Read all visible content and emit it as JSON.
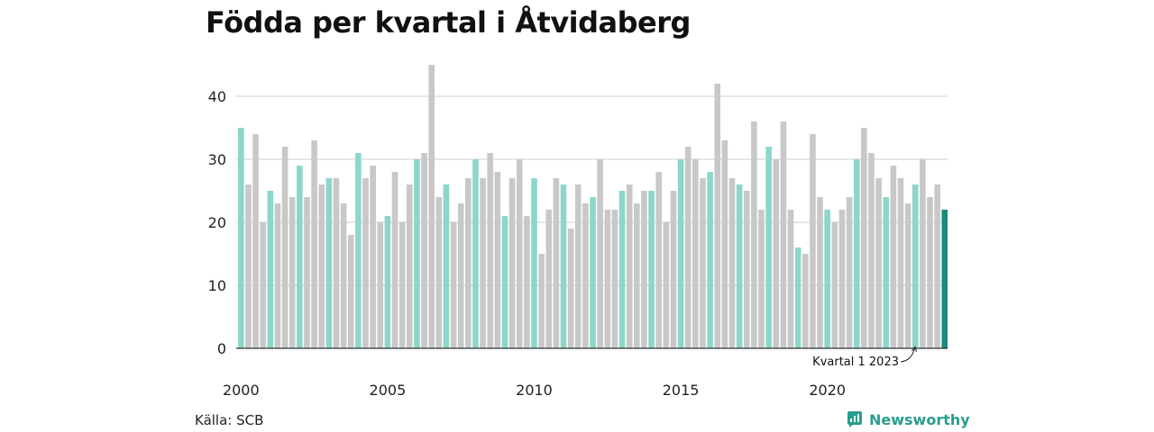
{
  "title": "Födda per kvartal i Åtvidaberg",
  "source": "Källa: SCB",
  "brand": "Newsworthy",
  "annotation": "Kvartal 1 2023",
  "colors": {
    "q1": "#8dd6cc",
    "other": "#c8c8c8",
    "latest": "#1a8a7e",
    "grid": "#dddddd",
    "brand": "#2a9d8f"
  },
  "chart_data": {
    "type": "bar",
    "title": "Födda per kvartal i Åtvidaberg",
    "xlabel": "",
    "ylabel": "",
    "ylim": [
      0,
      45
    ],
    "yticks": [
      0,
      10,
      20,
      30,
      40
    ],
    "xtick_labels": [
      "2000",
      "2005",
      "2010",
      "2015",
      "2020"
    ],
    "grid": true,
    "highlight": "Kvartal 1 2023",
    "start": "2000 Q1",
    "values": [
      35,
      26,
      34,
      20,
      25,
      23,
      32,
      24,
      29,
      24,
      33,
      26,
      27,
      27,
      23,
      18,
      31,
      27,
      29,
      20,
      21,
      28,
      20,
      26,
      30,
      31,
      45,
      24,
      26,
      20,
      23,
      27,
      30,
      27,
      31,
      28,
      21,
      27,
      30,
      21,
      27,
      15,
      22,
      27,
      26,
      19,
      26,
      23,
      24,
      30,
      22,
      22,
      25,
      26,
      23,
      25,
      25,
      28,
      20,
      25,
      30,
      32,
      30,
      27,
      28,
      42,
      33,
      27,
      26,
      25,
      36,
      22,
      32,
      30,
      36,
      22,
      16,
      15,
      34,
      24,
      22,
      20,
      22,
      24,
      30,
      35,
      31,
      27,
      24,
      29,
      27,
      23,
      26,
      30,
      24,
      26,
      22
    ]
  }
}
